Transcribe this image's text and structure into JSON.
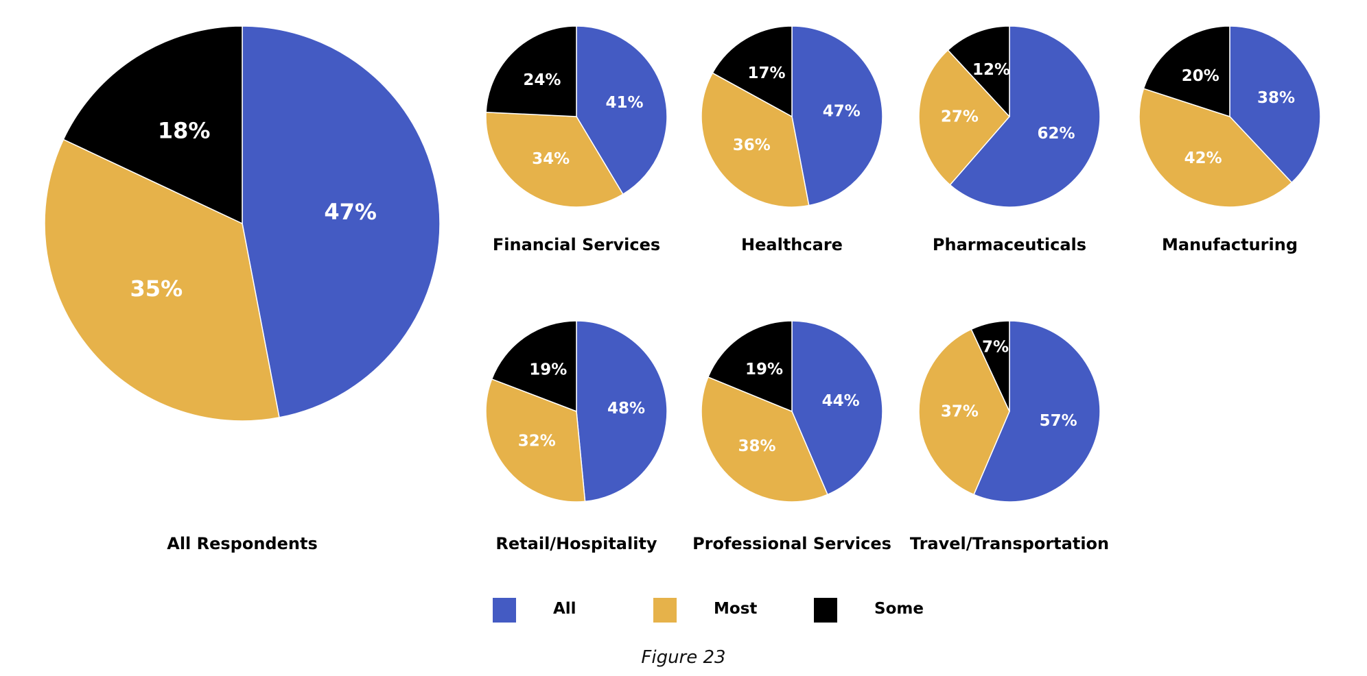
{
  "colors": {
    "All": "#445BC3",
    "Most": "#E6B24A",
    "Some": "#000000"
  },
  "chart_data": {
    "type": "pie",
    "series_order": [
      "All",
      "Most",
      "Some"
    ],
    "charts": [
      {
        "name": "All Respondents",
        "values": [
          47,
          35,
          18
        ],
        "labels": [
          "47%",
          "35%",
          "18%"
        ]
      },
      {
        "name": "Financial Services",
        "values": [
          41,
          34,
          24
        ],
        "labels": [
          "41%",
          "34%",
          "24%"
        ]
      },
      {
        "name": "Healthcare",
        "values": [
          47,
          36,
          17
        ],
        "labels": [
          "47%",
          "36%",
          "17%"
        ]
      },
      {
        "name": "Pharmaceuticals",
        "values": [
          62,
          27,
          12
        ],
        "labels": [
          "62%",
          "27%",
          "12%"
        ]
      },
      {
        "name": "Manufacturing",
        "values": [
          38,
          42,
          20
        ],
        "labels": [
          "38%",
          "42%",
          "20%"
        ]
      },
      {
        "name": "Retail/Hospitality",
        "values": [
          48,
          32,
          19
        ],
        "labels": [
          "48%",
          "32%",
          "19%"
        ]
      },
      {
        "name": "Professional Services",
        "values": [
          44,
          38,
          19
        ],
        "labels": [
          "44%",
          "38%",
          "19%"
        ]
      },
      {
        "name": "Travel/Transportation",
        "values": [
          57,
          37,
          7
        ],
        "labels": [
          "57%",
          "37%",
          "7%"
        ]
      }
    ],
    "legend": [
      "All",
      "Most",
      "Some"
    ],
    "legend_position": "bottom-center"
  },
  "caption": "Figure 23"
}
